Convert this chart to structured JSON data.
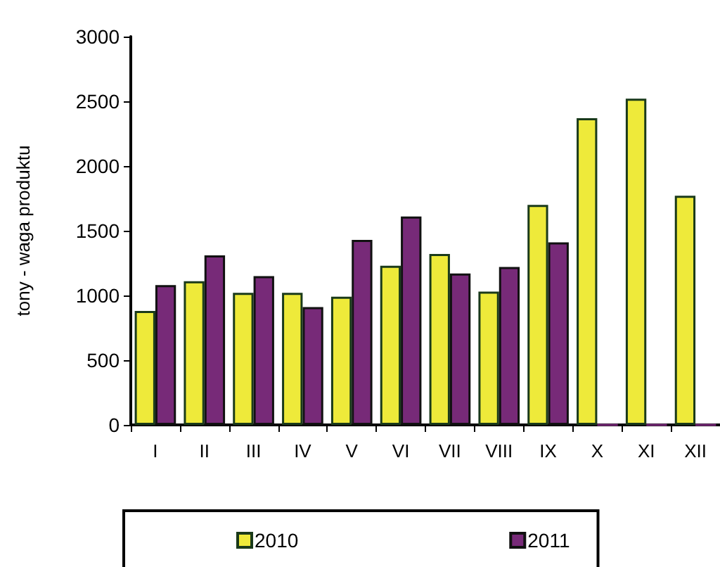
{
  "chart_data": {
    "type": "bar",
    "ylabel": "tony - waga produktu",
    "categories": [
      "I",
      "II",
      "III",
      "IV",
      "V",
      "VI",
      "VII",
      "VIII",
      "IX",
      "X",
      "XI",
      "XII"
    ],
    "series": [
      {
        "name": "2010",
        "color": "#eeea3a",
        "values": [
          880,
          1110,
          1020,
          1020,
          990,
          1230,
          1320,
          1030,
          1700,
          2370,
          2520,
          1770
        ]
      },
      {
        "name": "2011",
        "color": "#772a78",
        "values": [
          1080,
          1310,
          1150,
          910,
          1430,
          1610,
          1170,
          1220,
          1410,
          0,
          0,
          0
        ]
      }
    ],
    "ylim": [
      0,
      3000
    ],
    "yticks": [
      0,
      500,
      1000,
      1500,
      2000,
      2500,
      3000
    ],
    "grid": false,
    "legend": "bottom"
  }
}
